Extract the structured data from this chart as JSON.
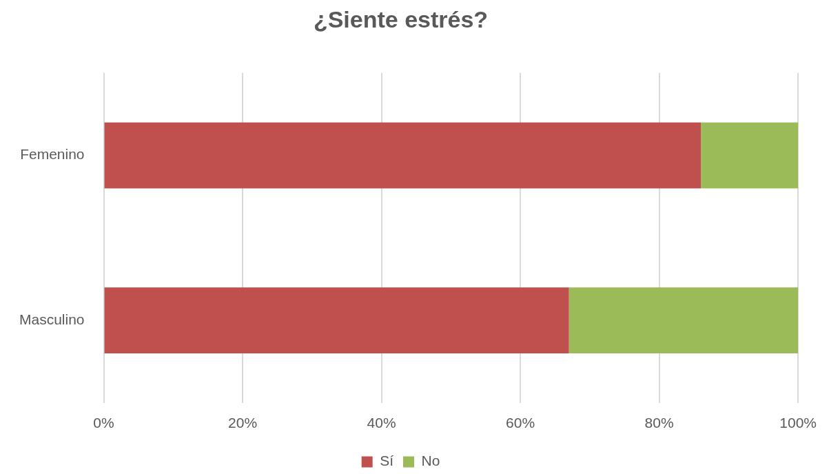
{
  "chart_data": {
    "type": "bar",
    "orientation": "horizontal",
    "stacked": true,
    "title": "¿Siente estrés?",
    "categories": [
      "Femenino",
      "Masculino"
    ],
    "series": [
      {
        "name": "Sí",
        "color": "#c0504d",
        "values": [
          86,
          67
        ]
      },
      {
        "name": "No",
        "color": "#9bbb59",
        "values": [
          14,
          33
        ]
      }
    ],
    "xlim": [
      0,
      100
    ],
    "xticks": [
      {
        "value": 0,
        "label": "0%"
      },
      {
        "value": 20,
        "label": "20%"
      },
      {
        "value": 40,
        "label": "40%"
      },
      {
        "value": 60,
        "label": "60%"
      },
      {
        "value": 80,
        "label": "80%"
      },
      {
        "value": 100,
        "label": "100%"
      }
    ],
    "grid": "x",
    "legend": "bottom"
  }
}
